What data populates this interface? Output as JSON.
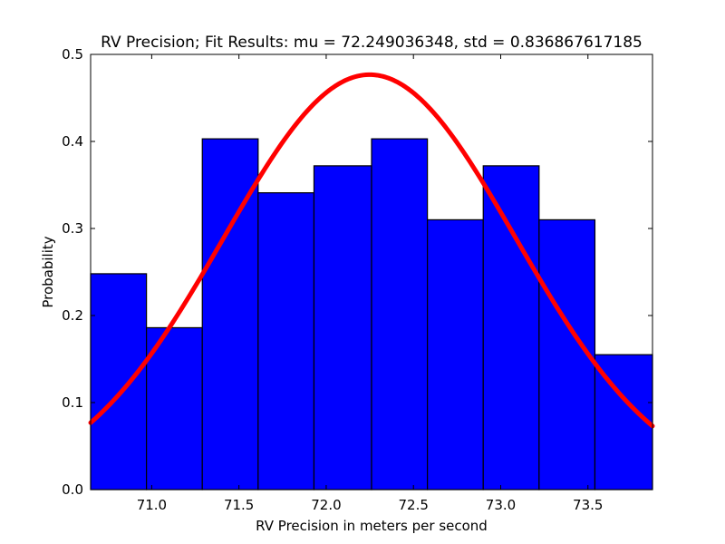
{
  "chart_data": {
    "type": "bar",
    "subtype": "histogram-with-fit",
    "title": "RV Precision; Fit Results: mu = 72.249036348, std = 0.836867617185",
    "xlabel": "RV Precision in meters per second",
    "ylabel": "Probability",
    "xlim": [
      70.65,
      73.87
    ],
    "ylim": [
      0.0,
      0.5
    ],
    "x_ticks": [
      71.0,
      71.5,
      72.0,
      72.5,
      73.0,
      73.5
    ],
    "x_tick_labels": [
      "71.0",
      "71.5",
      "72.0",
      "72.5",
      "73.0",
      "73.5"
    ],
    "y_ticks": [
      0.0,
      0.1,
      0.2,
      0.3,
      0.4,
      0.5
    ],
    "y_tick_labels": [
      "0.0",
      "0.1",
      "0.2",
      "0.3",
      "0.4",
      "0.5"
    ],
    "grid": false,
    "bins": [
      {
        "x0": 70.65,
        "x1": 70.97,
        "value": 0.248
      },
      {
        "x0": 70.97,
        "x1": 71.29,
        "value": 0.186
      },
      {
        "x0": 71.29,
        "x1": 71.61,
        "value": 0.403
      },
      {
        "x0": 71.61,
        "x1": 71.93,
        "value": 0.341
      },
      {
        "x0": 71.93,
        "x1": 72.26,
        "value": 0.372
      },
      {
        "x0": 72.26,
        "x1": 72.58,
        "value": 0.403
      },
      {
        "x0": 72.58,
        "x1": 72.9,
        "value": 0.31
      },
      {
        "x0": 72.9,
        "x1": 73.22,
        "value": 0.372
      },
      {
        "x0": 73.22,
        "x1": 73.54,
        "value": 0.31
      },
      {
        "x0": 73.54,
        "x1": 73.87,
        "value": 0.155
      }
    ],
    "fit": {
      "type": "normal-pdf",
      "mu": 72.249036348,
      "std": 0.836867617185
    },
    "colors": {
      "bars": "#0000ff",
      "bar_edge": "#000000",
      "fit_line": "#ff0000"
    }
  }
}
